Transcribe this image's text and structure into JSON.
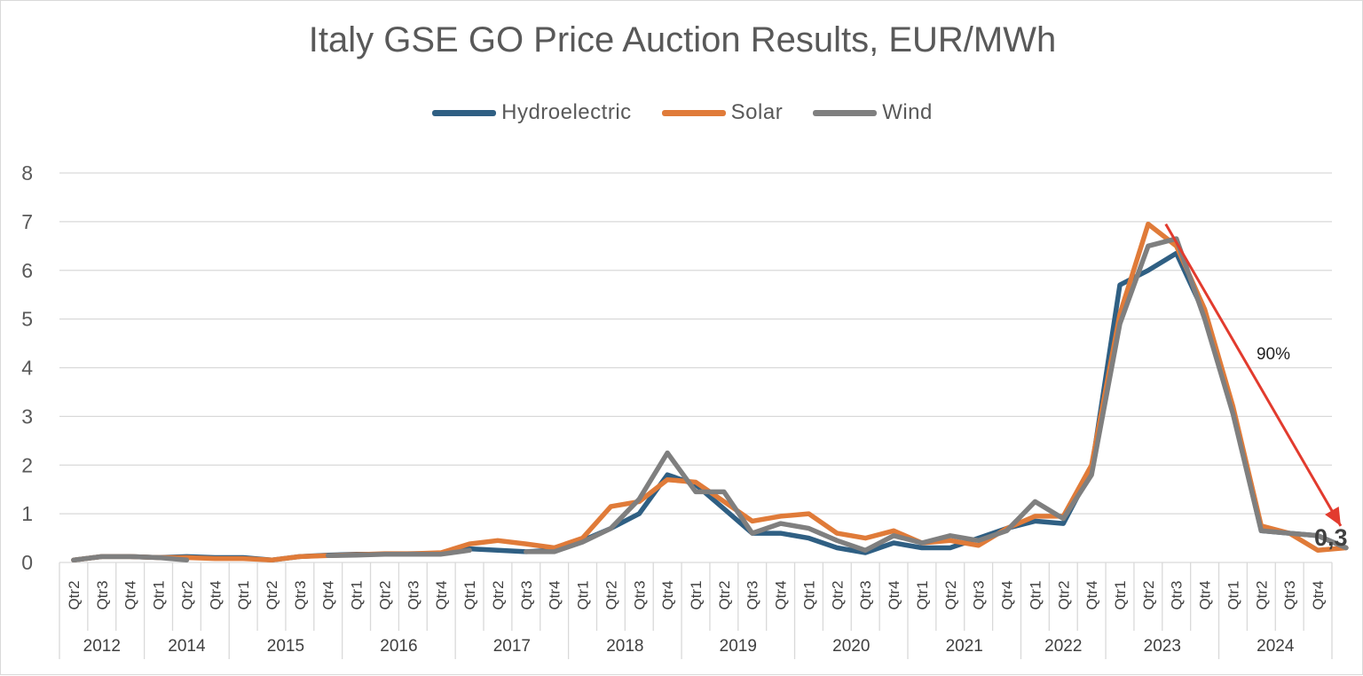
{
  "chart_data": {
    "type": "line",
    "title": "Italy GSE GO Price Auction Results, EUR/MWh",
    "xlabel": "",
    "ylabel": "",
    "ylim": [
      0,
      8
    ],
    "yticks": [
      0,
      1,
      2,
      3,
      4,
      5,
      6,
      7,
      8
    ],
    "grid": true,
    "legend_position": "top",
    "year_groups": [
      {
        "year": "2012",
        "quarters": [
          "Qtr2",
          "Qtr3",
          "Qtr4"
        ]
      },
      {
        "year": "2014",
        "quarters": [
          "Qtr1",
          "Qtr2",
          "Qtr4"
        ]
      },
      {
        "year": "2015",
        "quarters": [
          "Qtr1",
          "Qtr2",
          "Qtr3",
          "Qtr4"
        ]
      },
      {
        "year": "2016",
        "quarters": [
          "Qtr1",
          "Qtr2",
          "Qtr3",
          "Qtr4"
        ]
      },
      {
        "year": "2017",
        "quarters": [
          "Qtr1",
          "Qtr2",
          "Qtr3",
          "Qtr4"
        ]
      },
      {
        "year": "2018",
        "quarters": [
          "Qtr1",
          "Qtr2",
          "Qtr3",
          "Qtr4"
        ]
      },
      {
        "year": "2019",
        "quarters": [
          "Qtr1",
          "Qtr2",
          "Qtr3",
          "Qtr4"
        ]
      },
      {
        "year": "2020",
        "quarters": [
          "Qtr1",
          "Qtr2",
          "Qtr3",
          "Qtr4"
        ]
      },
      {
        "year": "2021",
        "quarters": [
          "Qtr1",
          "Qtr2",
          "Qtr3",
          "Qtr4"
        ]
      },
      {
        "year": "2022",
        "quarters": [
          "Qtr1",
          "Qtr2",
          "Qtr4"
        ]
      },
      {
        "year": "2023",
        "quarters": [
          "Qtr1",
          "Qtr2",
          "Qtr3",
          "Qtr4"
        ]
      },
      {
        "year": "2024",
        "quarters": [
          "Qtr1",
          "Qtr2",
          "Qtr3",
          "Qtr4"
        ]
      }
    ],
    "series": [
      {
        "name": "Hydroelectric",
        "color": "#2f5f83",
        "values": [
          0.05,
          0.12,
          0.12,
          0.1,
          0.12,
          0.1,
          0.1,
          0.05,
          0.12,
          0.15,
          0.17,
          0.17,
          0.18,
          0.18,
          0.28,
          0.25,
          0.22,
          0.25,
          0.45,
          0.7,
          1.0,
          1.8,
          1.6,
          1.1,
          0.6,
          0.6,
          0.5,
          0.3,
          0.2,
          0.4,
          0.3,
          0.3,
          0.5,
          0.7,
          0.85,
          0.8,
          1.9,
          5.7,
          6.0,
          6.35,
          5.1,
          3.1,
          0.65,
          0.6,
          0.55,
          0.3
        ]
      },
      {
        "name": "Solar",
        "color": "#e07b39",
        "values": [
          0.05,
          0.12,
          0.12,
          0.1,
          0.1,
          0.08,
          0.08,
          0.05,
          0.12,
          0.14,
          0.16,
          0.18,
          0.18,
          0.2,
          0.38,
          0.45,
          0.38,
          0.3,
          0.5,
          1.15,
          1.25,
          1.7,
          1.65,
          1.25,
          0.85,
          0.95,
          1.0,
          0.6,
          0.5,
          0.65,
          0.4,
          0.45,
          0.35,
          0.7,
          0.95,
          0.95,
          2.0,
          5.1,
          6.95,
          6.5,
          5.2,
          3.2,
          0.75,
          0.6,
          0.25,
          0.3
        ]
      },
      {
        "name": "Wind",
        "color": "#7f7f7f",
        "values": [
          0.05,
          0.12,
          0.12,
          0.1,
          0.05,
          null,
          null,
          null,
          null,
          0.14,
          0.15,
          0.17,
          0.17,
          0.17,
          0.25,
          null,
          0.22,
          0.22,
          0.42,
          0.7,
          1.3,
          2.25,
          1.45,
          1.45,
          0.6,
          0.8,
          0.7,
          0.45,
          0.25,
          0.55,
          0.4,
          0.55,
          0.45,
          0.65,
          1.25,
          0.9,
          1.8,
          4.9,
          6.5,
          6.65,
          5.0,
          3.05,
          0.65,
          0.6,
          0.55,
          0.3
        ]
      }
    ],
    "annotations": [
      {
        "text": "90%"
      },
      {
        "text": "0,3"
      }
    ]
  }
}
